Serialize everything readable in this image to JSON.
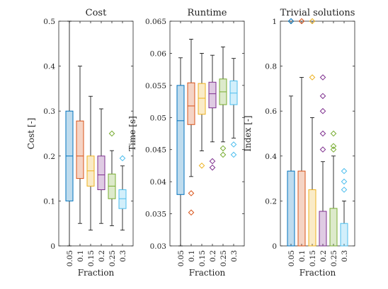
{
  "chart_data": [
    {
      "type": "box",
      "title": "Cost",
      "xlabel": "Fraction",
      "ylabel": "Cost [-]",
      "categories": [
        "0.05",
        "0.1",
        "0.15",
        "0.2",
        "0.25",
        "0.3"
      ],
      "ylim": [
        0,
        0.5
      ],
      "yticks": [
        "0",
        "0.1",
        "0.2",
        "0.3",
        "0.4",
        "0.5"
      ],
      "boxes": [
        {
          "whisker_low": 0.0,
          "q1": 0.1,
          "median": 0.2,
          "q3": 0.3,
          "whisker_high": 0.5,
          "outliers": []
        },
        {
          "whisker_low": 0.05,
          "q1": 0.15,
          "median": 0.2,
          "q3": 0.278,
          "whisker_high": 0.4,
          "outliers": []
        },
        {
          "whisker_low": 0.035,
          "q1": 0.133,
          "median": 0.167,
          "q3": 0.2,
          "whisker_high": 0.333,
          "outliers": []
        },
        {
          "whisker_low": 0.05,
          "q1": 0.125,
          "median": 0.158,
          "q3": 0.2,
          "whisker_high": 0.305,
          "outliers": []
        },
        {
          "whisker_low": 0.045,
          "q1": 0.105,
          "median": 0.133,
          "q3": 0.16,
          "whisker_high": 0.212,
          "outliers": [
            0.25
          ]
        },
        {
          "whisker_low": 0.035,
          "q1": 0.083,
          "median": 0.105,
          "q3": 0.125,
          "whisker_high": 0.178,
          "outliers": [
            0.195
          ]
        }
      ],
      "colors": [
        "#0072BD",
        "#D95319",
        "#EDB120",
        "#7E2F8E",
        "#77AC30",
        "#4DBEEE"
      ],
      "grid": false
    },
    {
      "type": "box",
      "title": "Runtime",
      "xlabel": "Fraction",
      "ylabel": "Time [s]",
      "categories": [
        "0.05",
        "0.1",
        "0.15",
        "0.2",
        "0.25",
        "0.3"
      ],
      "ylim": [
        0.03,
        0.065
      ],
      "yticks": [
        "0.03",
        "0.035",
        "0.04",
        "0.045",
        "0.05",
        "0.055",
        "0.06",
        "0.065"
      ],
      "boxes": [
        {
          "whisker_low": 0.03,
          "q1": 0.038,
          "median": 0.0495,
          "q3": 0.055,
          "whisker_high": 0.0593,
          "outliers": []
        },
        {
          "whisker_low": 0.0408,
          "q1": 0.0489,
          "median": 0.0518,
          "q3": 0.0554,
          "whisker_high": 0.0622,
          "outliers": [
            0.0382,
            0.0352
          ]
        },
        {
          "whisker_low": 0.0448,
          "q1": 0.0505,
          "median": 0.053,
          "q3": 0.0553,
          "whisker_high": 0.06,
          "outliers": [
            0.0425
          ]
        },
        {
          "whisker_low": 0.0462,
          "q1": 0.0515,
          "median": 0.0537,
          "q3": 0.0555,
          "whisker_high": 0.0597,
          "outliers": [
            0.0432,
            0.0422
          ]
        },
        {
          "whisker_low": 0.0462,
          "q1": 0.052,
          "median": 0.054,
          "q3": 0.056,
          "whisker_high": 0.061,
          "outliers": [
            0.0452,
            0.0442
          ]
        },
        {
          "whisker_low": 0.0468,
          "q1": 0.052,
          "median": 0.0538,
          "q3": 0.0557,
          "whisker_high": 0.0592,
          "outliers": [
            0.0458,
            0.0442
          ]
        }
      ],
      "colors": [
        "#0072BD",
        "#D95319",
        "#EDB120",
        "#7E2F8E",
        "#77AC30",
        "#4DBEEE"
      ],
      "grid": false
    },
    {
      "type": "box",
      "title": "Trivial solutions",
      "xlabel": "Fraction",
      "ylabel": "Index [-]",
      "categories": [
        "0.05",
        "0.1",
        "0.15",
        "0.2",
        "0.25",
        "0.3"
      ],
      "ylim": [
        0,
        1
      ],
      "yticks": [
        "0",
        "0.2",
        "0.4",
        "0.6",
        "0.8",
        "1"
      ],
      "boxes": [
        {
          "whisker_low": 0.0,
          "q1": 0.0,
          "median": 0.0,
          "q3": 0.333,
          "whisker_high": 0.667,
          "outliers": [
            1.0
          ]
        },
        {
          "whisker_low": 0.0,
          "q1": 0.0,
          "median": 0.0,
          "q3": 0.333,
          "whisker_high": 0.75,
          "outliers": [
            1.0
          ]
        },
        {
          "whisker_low": 0.0,
          "q1": 0.0,
          "median": 0.0,
          "q3": 0.25,
          "whisker_high": 0.571,
          "outliers": [
            0.75,
            1.0
          ]
        },
        {
          "whisker_low": 0.0,
          "q1": 0.0,
          "median": 0.0,
          "q3": 0.154,
          "whisker_high": 0.375,
          "outliers": [
            0.429,
            0.5,
            0.6,
            0.667,
            0.75
          ]
        },
        {
          "whisker_low": 0.0,
          "q1": 0.0,
          "median": 0.0,
          "q3": 0.167,
          "whisker_high": 0.4,
          "outliers": [
            0.429,
            0.444,
            0.5
          ]
        },
        {
          "whisker_low": 0.0,
          "q1": 0.0,
          "median": 0.0,
          "q3": 0.1,
          "whisker_high": 0.2,
          "outliers": [
            0.25,
            0.286,
            0.333
          ]
        }
      ],
      "colors": [
        "#0072BD",
        "#D95319",
        "#EDB120",
        "#7E2F8E",
        "#77AC30",
        "#4DBEEE"
      ],
      "grid": false
    }
  ]
}
